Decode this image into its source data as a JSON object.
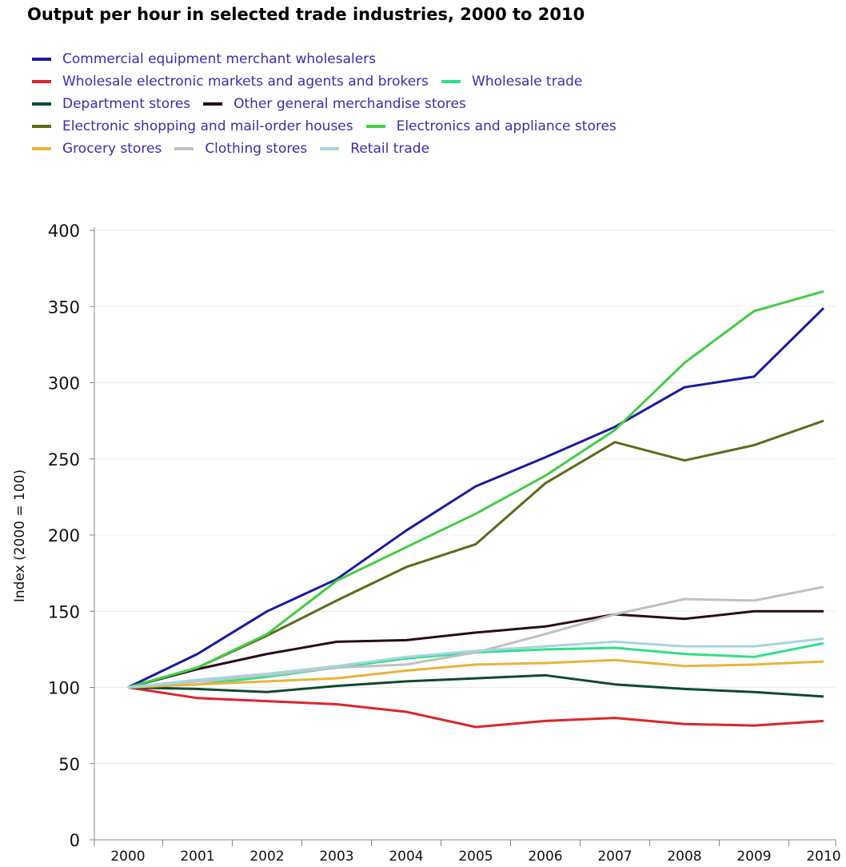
{
  "chart_data": {
    "type": "line",
    "title": "Output per hour in selected trade industries, 2000 to 2010",
    "xlabel": "",
    "ylabel": "Index (2000 = 100)",
    "x": [
      "2000",
      "2001",
      "2002",
      "2003",
      "2004",
      "2005",
      "2006",
      "2007",
      "2008",
      "2009",
      "2010"
    ],
    "ylim": [
      0,
      400
    ],
    "yticks": [
      0,
      50,
      100,
      150,
      200,
      250,
      300,
      350,
      400
    ],
    "grid": true,
    "legend_position": "top",
    "series": [
      {
        "name": "Commercial equipment merchant wholesalers",
        "color": "#1a1aa0",
        "values": [
          100,
          122,
          150,
          171,
          203,
          232,
          251,
          271,
          297,
          304,
          349
        ]
      },
      {
        "name": "Wholesale electronic markets and agents and brokers",
        "color": "#d9262b",
        "values": [
          100,
          93,
          91,
          89,
          84,
          74,
          78,
          80,
          76,
          75,
          78
        ]
      },
      {
        "name": "Wholesale trade",
        "color": "#2ee08a",
        "values": [
          100,
          102,
          107,
          113,
          119,
          123,
          125,
          126,
          122,
          120,
          129
        ]
      },
      {
        "name": "Department stores",
        "color": "#0d4a2e",
        "values": [
          100,
          99,
          97,
          101,
          104,
          106,
          108,
          102,
          99,
          97,
          94
        ]
      },
      {
        "name": "Other general merchandise stores",
        "color": "#2a0a1e",
        "values": [
          100,
          112,
          122,
          130,
          131,
          136,
          140,
          148,
          145,
          150,
          150
        ]
      },
      {
        "name": "Electronic shopping and mail-order houses",
        "color": "#5c6b1a",
        "values": [
          100,
          113,
          134,
          157,
          179,
          194,
          234,
          261,
          249,
          259,
          275
        ]
      },
      {
        "name": "Electronics and appliance stores",
        "color": "#44cc44",
        "values": [
          100,
          113,
          135,
          170,
          192,
          214,
          239,
          269,
          313,
          347,
          360
        ]
      },
      {
        "name": "Grocery stores",
        "color": "#e8b43a",
        "values": [
          100,
          102,
          104,
          106,
          111,
          115,
          116,
          118,
          114,
          115,
          117
        ]
      },
      {
        "name": "Clothing stores",
        "color": "#c0c0c0",
        "values": [
          100,
          104,
          108,
          113,
          115,
          123,
          135,
          148,
          158,
          157,
          166
        ]
      },
      {
        "name": "Retail trade",
        "color": "#a8d4e0",
        "values": [
          100,
          105,
          109,
          114,
          120,
          124,
          127,
          130,
          127,
          127,
          132
        ]
      }
    ]
  },
  "legend_rows": [
    [
      0
    ],
    [
      1,
      2
    ],
    [
      3,
      4
    ],
    [
      5,
      6
    ],
    [
      7,
      8,
      9
    ]
  ]
}
